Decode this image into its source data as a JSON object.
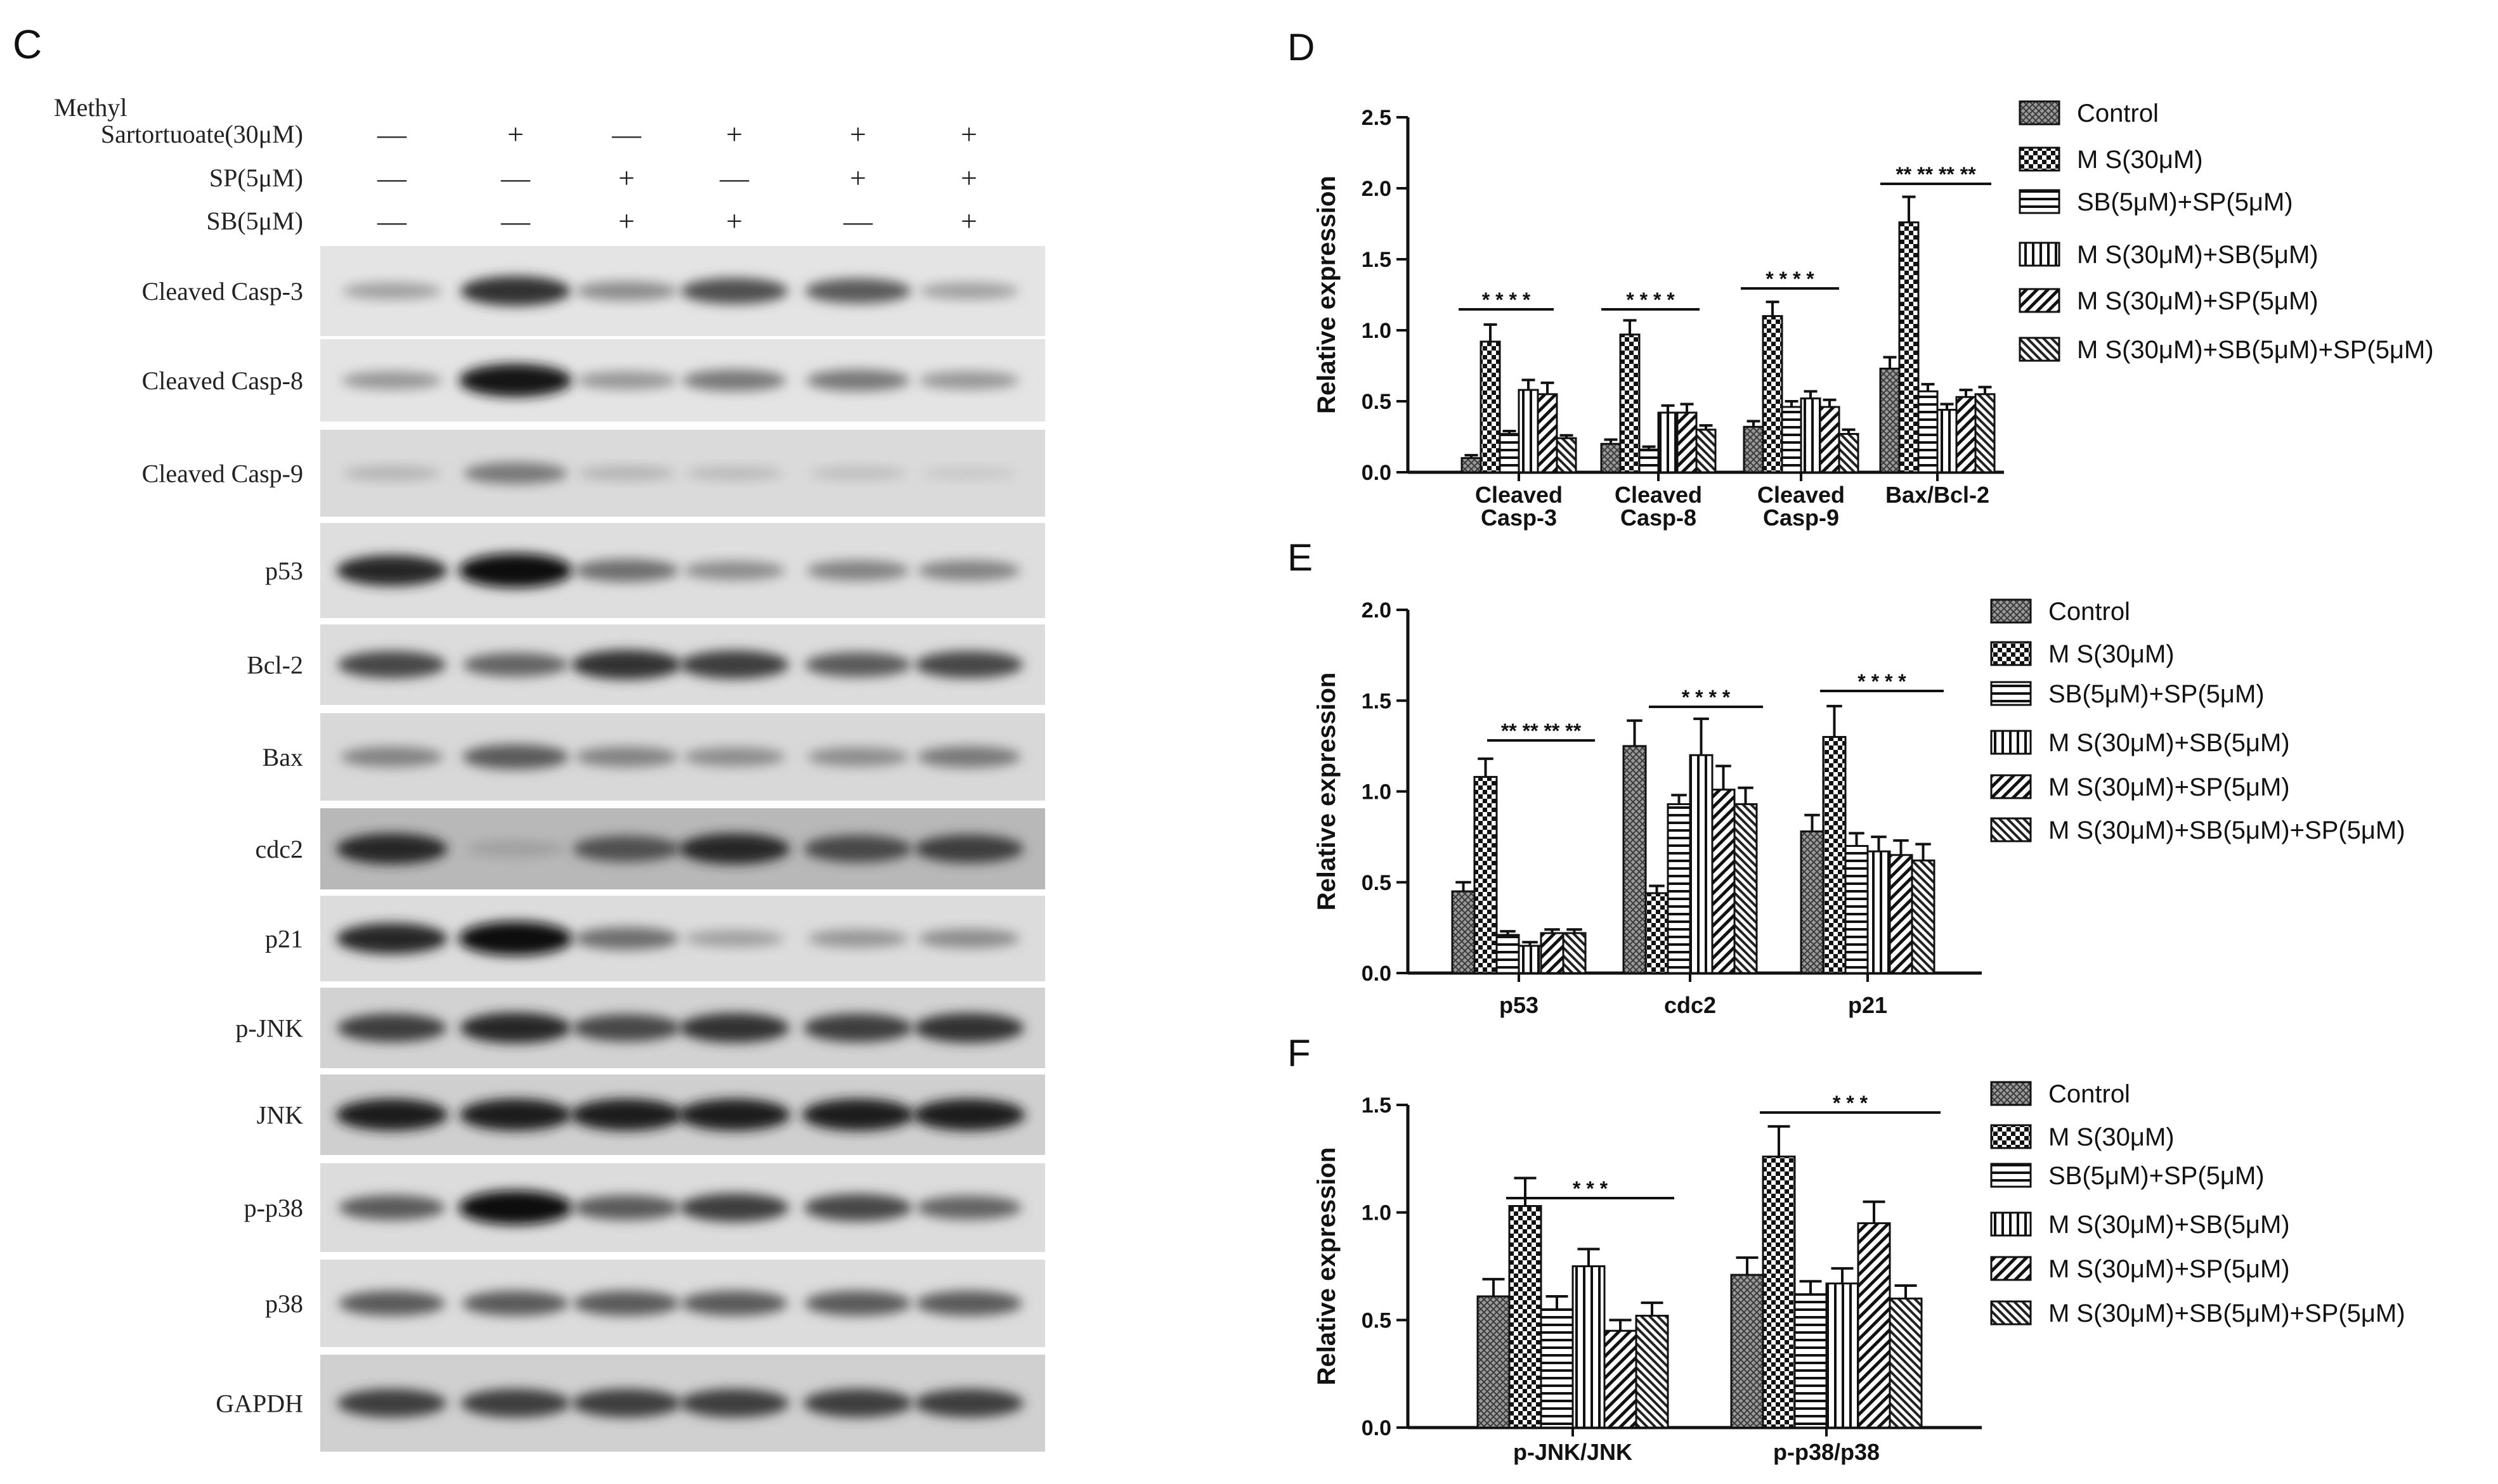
{
  "panel_c": {
    "letter": "C",
    "treatment_rows": [
      {
        "label_line1": "Methyl",
        "label_line2": "Sartortuoate(30μM)",
        "signs": [
          "—",
          "+",
          "—",
          "+",
          "+",
          "+"
        ]
      },
      {
        "label_line1": "",
        "label_line2": "SP(5μM)",
        "signs": [
          "—",
          "—",
          "+",
          "—",
          "+",
          "+"
        ]
      },
      {
        "label_line1": "",
        "label_line2": "SB(5μM)",
        "signs": [
          "—",
          "—",
          "+",
          "+",
          "—",
          "+"
        ]
      }
    ],
    "blots": [
      {
        "label": "Cleaved Casp-3",
        "bg": "#e4e4e4",
        "intensity": [
          0.25,
          0.8,
          0.35,
          0.65,
          0.6,
          0.25
        ]
      },
      {
        "label": "Cleaved Casp-8",
        "bg": "#e4e4e4",
        "intensity": [
          0.3,
          0.95,
          0.3,
          0.45,
          0.45,
          0.3
        ]
      },
      {
        "label": "Cleaved Casp-9",
        "bg": "#dadada",
        "intensity": [
          0.15,
          0.45,
          0.15,
          0.12,
          0.1,
          0.05
        ]
      },
      {
        "label": "p53",
        "bg": "#dedede",
        "intensity": [
          0.85,
          1.0,
          0.5,
          0.35,
          0.4,
          0.4
        ]
      },
      {
        "label": "Bcl-2",
        "bg": "#dcdcdc",
        "intensity": [
          0.7,
          0.55,
          0.8,
          0.75,
          0.6,
          0.7
        ]
      },
      {
        "label": "Bax",
        "bg": "#d8d8d8",
        "intensity": [
          0.4,
          0.6,
          0.4,
          0.35,
          0.35,
          0.45
        ]
      },
      {
        "label": "cdc2",
        "bg": "#b8b8b8",
        "intensity": [
          0.85,
          0.25,
          0.65,
          0.85,
          0.7,
          0.75
        ]
      },
      {
        "label": "p21",
        "bg": "#dcdcdc",
        "intensity": [
          0.85,
          1.0,
          0.5,
          0.25,
          0.3,
          0.35
        ]
      },
      {
        "label": "p-JNK",
        "bg": "#d2d2d2",
        "intensity": [
          0.75,
          0.85,
          0.7,
          0.8,
          0.75,
          0.8
        ]
      },
      {
        "label": "JNK",
        "bg": "#cfcfcf",
        "intensity": [
          0.9,
          0.9,
          0.9,
          0.9,
          0.9,
          0.9
        ]
      },
      {
        "label": "p-p38",
        "bg": "#dcdcdc",
        "intensity": [
          0.6,
          1.0,
          0.6,
          0.75,
          0.7,
          0.55
        ]
      },
      {
        "label": "p38",
        "bg": "#dcdcdc",
        "intensity": [
          0.6,
          0.6,
          0.6,
          0.6,
          0.6,
          0.6
        ]
      },
      {
        "label": "GAPDH",
        "bg": "#d0d0d0",
        "intensity": [
          0.75,
          0.75,
          0.75,
          0.75,
          0.75,
          0.75
        ]
      }
    ]
  },
  "legend": {
    "entries": [
      "Control",
      "M S(30μM)",
      "SB(5μM)+SP(5μM)",
      "M S(30μM)+SB(5μM)",
      "M S(30μM)+SP(5μM)",
      "M S(30μM)+SB(5μM)+SP(5μM)"
    ],
    "patterns": [
      "hatch-grid",
      "checker",
      "horizontal",
      "vertical",
      "diagonal",
      "diagonal-dense"
    ]
  },
  "chart_data": [
    {
      "panel": "D",
      "type": "bar",
      "ylabel": "Relative expression",
      "ylim": [
        0,
        2.5
      ],
      "yticks": [
        "0.0",
        "0.5",
        "1.0",
        "1.5",
        "2.0",
        "2.5"
      ],
      "categories": [
        [
          "Cleaved",
          "Casp-3"
        ],
        [
          "Cleaved",
          "Casp-8"
        ],
        [
          "Cleaved",
          "Casp-9"
        ],
        [
          "Bax/Bcl-2"
        ]
      ],
      "series": [
        {
          "name": "Control",
          "values": [
            0.1,
            0.2,
            0.32,
            0.73
          ],
          "errors": [
            0.02,
            0.03,
            0.04,
            0.08
          ]
        },
        {
          "name": "M S(30μM)",
          "values": [
            0.92,
            0.97,
            1.1,
            1.76
          ],
          "errors": [
            0.12,
            0.1,
            0.1,
            0.18
          ]
        },
        {
          "name": "SB(5μM)+SP(5μM)",
          "values": [
            0.27,
            0.16,
            0.46,
            0.57
          ],
          "errors": [
            0.02,
            0.02,
            0.04,
            0.05
          ]
        },
        {
          "name": "M S(30μM)+SB(5μM)",
          "values": [
            0.58,
            0.42,
            0.52,
            0.44
          ],
          "errors": [
            0.07,
            0.05,
            0.05,
            0.04
          ]
        },
        {
          "name": "M S(30μM)+SP(5μM)",
          "values": [
            0.55,
            0.42,
            0.46,
            0.53
          ],
          "errors": [
            0.08,
            0.06,
            0.05,
            0.05
          ]
        },
        {
          "name": "M S(30μM)+SB(5μM)+SP(5μM)",
          "values": [
            0.24,
            0.3,
            0.27,
            0.55
          ],
          "errors": [
            0.02,
            0.03,
            0.03,
            0.05
          ]
        }
      ],
      "significance": [
        "* * * *",
        "* * * *",
        "* * * *",
        "** ** ** **"
      ]
    },
    {
      "panel": "E",
      "type": "bar",
      "ylabel": "Relative expression",
      "ylim": [
        0,
        2.0
      ],
      "yticks": [
        "0.0",
        "0.5",
        "1.0",
        "1.5",
        "2.0"
      ],
      "categories": [
        [
          "p53"
        ],
        [
          "cdc2"
        ],
        [
          "p21"
        ]
      ],
      "series": [
        {
          "name": "Control",
          "values": [
            0.45,
            1.25,
            0.78
          ],
          "errors": [
            0.05,
            0.14,
            0.09
          ]
        },
        {
          "name": "M S(30μM)",
          "values": [
            1.08,
            0.44,
            1.3
          ],
          "errors": [
            0.1,
            0.04,
            0.17
          ]
        },
        {
          "name": "SB(5μM)+SP(5μM)",
          "values": [
            0.21,
            0.93,
            0.7
          ],
          "errors": [
            0.02,
            0.05,
            0.07
          ]
        },
        {
          "name": "M S(30μM)+SB(5μM)",
          "values": [
            0.15,
            1.2,
            0.67
          ],
          "errors": [
            0.02,
            0.2,
            0.08
          ]
        },
        {
          "name": "M S(30μM)+SP(5μM)",
          "values": [
            0.22,
            1.01,
            0.65
          ],
          "errors": [
            0.02,
            0.13,
            0.08
          ]
        },
        {
          "name": "M S(30μM)+SB(5μM)+SP(5μM)",
          "values": [
            0.22,
            0.93,
            0.62
          ],
          "errors": [
            0.02,
            0.09,
            0.09
          ]
        }
      ],
      "significance": [
        "** ** ** **",
        "* * * *",
        "* * * *"
      ]
    },
    {
      "panel": "F",
      "type": "bar",
      "ylabel": "Relative expression",
      "ylim": [
        0,
        1.5
      ],
      "yticks": [
        "0.0",
        "0.5",
        "1.0",
        "1.5"
      ],
      "categories": [
        [
          "p-JNK/JNK"
        ],
        [
          "p-p38/p38"
        ]
      ],
      "series": [
        {
          "name": "Control",
          "values": [
            0.61,
            0.71
          ],
          "errors": [
            0.08,
            0.08
          ]
        },
        {
          "name": "M S(30μM)",
          "values": [
            1.03,
            1.26
          ],
          "errors": [
            0.13,
            0.14
          ]
        },
        {
          "name": "SB(5μM)+SP(5μM)",
          "values": [
            0.55,
            0.62
          ],
          "errors": [
            0.06,
            0.06
          ]
        },
        {
          "name": "M S(30μM)+SB(5μM)",
          "values": [
            0.75,
            0.67
          ],
          "errors": [
            0.08,
            0.07
          ]
        },
        {
          "name": "M S(30μM)+SP(5μM)",
          "values": [
            0.45,
            0.95
          ],
          "errors": [
            0.05,
            0.1
          ]
        },
        {
          "name": "M S(30μM)+SB(5μM)+SP(5μM)",
          "values": [
            0.52,
            0.6
          ],
          "errors": [
            0.06,
            0.06
          ]
        }
      ],
      "significance": [
        "*          *   *",
        "*   *           *"
      ]
    }
  ]
}
